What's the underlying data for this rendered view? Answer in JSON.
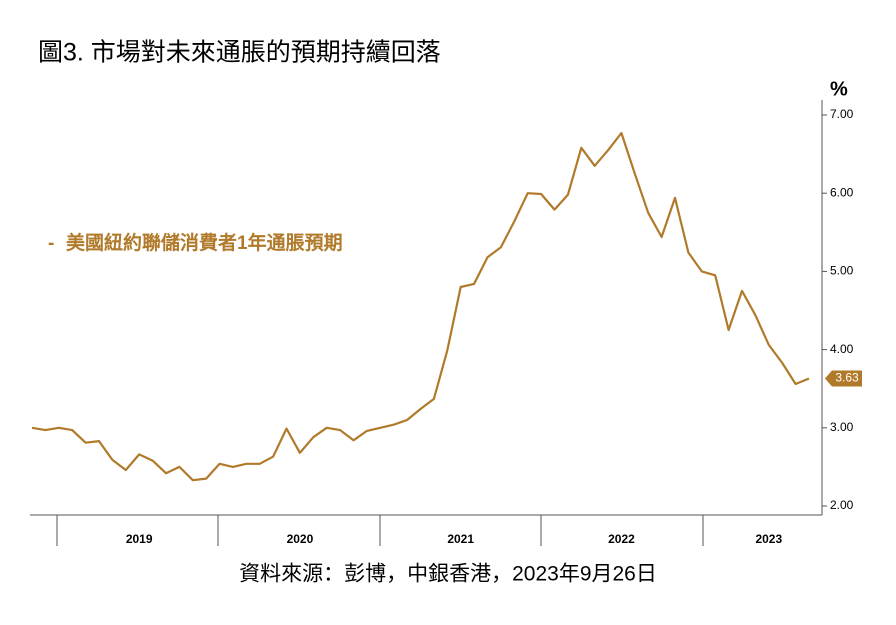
{
  "chart_data": {
    "type": "line",
    "title": "圖3. 市場對未來通脹的預期持續回落",
    "y_label": "%",
    "source": "資料來源：彭博，中銀香港，2023年9月26日",
    "categories": [
      null,
      null,
      null,
      null,
      null,
      null,
      null,
      null,
      "2019",
      null,
      null,
      null,
      null,
      null,
      null,
      null,
      null,
      null,
      null,
      null,
      "2020",
      null,
      null,
      null,
      null,
      null,
      null,
      null,
      null,
      null,
      null,
      null,
      "2021",
      null,
      null,
      null,
      null,
      null,
      null,
      null,
      null,
      null,
      null,
      null,
      "2022",
      null,
      null,
      null,
      null,
      null,
      null,
      null,
      null,
      null,
      null,
      "2023",
      null,
      null,
      null
    ],
    "series": [
      {
        "name": "美國紐約聯儲消費者1年通脹預期",
        "color": "#b07a2a",
        "values": [
          3.0,
          2.97,
          3.0,
          2.97,
          2.81,
          2.83,
          2.59,
          2.46,
          2.66,
          2.58,
          2.42,
          2.5,
          2.33,
          2.35,
          2.54,
          2.5,
          2.54,
          2.54,
          2.63,
          2.99,
          2.68,
          2.88,
          3.0,
          2.97,
          2.84,
          2.96,
          3.0,
          3.04,
          3.1,
          3.24,
          3.37,
          3.99,
          4.8,
          4.84,
          5.18,
          5.31,
          5.64,
          6.0,
          5.99,
          5.79,
          5.98,
          6.58,
          6.35,
          6.55,
          6.77,
          6.25,
          5.75,
          5.44,
          5.94,
          5.24,
          5.0,
          4.95,
          4.25,
          4.75,
          4.44,
          4.06,
          3.83,
          3.56,
          3.63
        ]
      }
    ],
    "ylim": [
      2,
      7
    ],
    "yticks": [
      {
        "value": 2,
        "label": "2.00"
      },
      {
        "value": 3,
        "label": "3.00"
      },
      {
        "value": 4,
        "label": "4.00"
      },
      {
        "value": 5,
        "label": "5.00"
      },
      {
        "value": 6,
        "label": "6.00"
      },
      {
        "value": 7,
        "label": "7.00"
      }
    ]
  }
}
